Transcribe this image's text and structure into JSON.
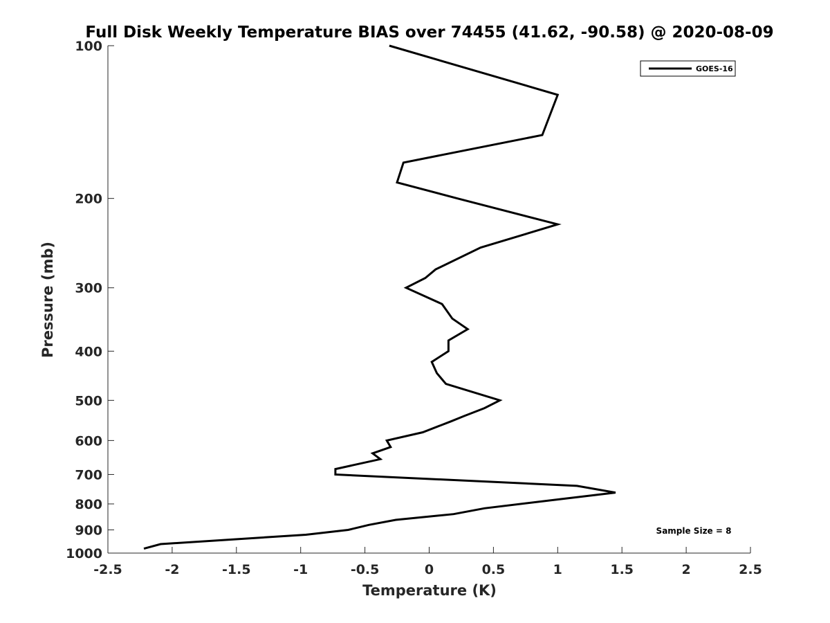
{
  "chart_data": {
    "type": "line",
    "title": "Full Disk Weekly Temperature BIAS over 74455 (41.62, -90.58) @ 2020-08-09",
    "xlabel": "Temperature (K)",
    "ylabel": "Pressure (mb)",
    "xlim": [
      -2.5,
      2.5
    ],
    "ylim": [
      100,
      1000
    ],
    "y_scale": "log",
    "y_reversed": true,
    "grid": false,
    "x_ticks": [
      -2.5,
      -2,
      -1.5,
      -1,
      -0.5,
      0,
      0.5,
      1,
      1.5,
      2,
      2.5
    ],
    "x_tick_labels": [
      "-2.5",
      "-2",
      "-1.5",
      "-1",
      "-0.5",
      "0",
      "0.5",
      "1",
      "1.5",
      "2",
      "2.5"
    ],
    "y_ticks": [
      100,
      200,
      300,
      400,
      500,
      600,
      700,
      800,
      900,
      1000
    ],
    "y_tick_labels": [
      "100",
      "200",
      "300",
      "400",
      "500",
      "600",
      "700",
      "800",
      "900",
      "1000"
    ],
    "legend_position": "top-right",
    "annotation": "Sample Size = 8",
    "series": [
      {
        "name": "GOES-16",
        "color": "#000000",
        "points": [
          [
            -0.31,
            100
          ],
          [
            1.0,
            125
          ],
          [
            0.88,
            150
          ],
          [
            -0.2,
            170
          ],
          [
            -0.25,
            186
          ],
          [
            0.22,
            200
          ],
          [
            1.0,
            225
          ],
          [
            0.4,
            250
          ],
          [
            0.05,
            276
          ],
          [
            -0.03,
            287
          ],
          [
            -0.18,
            300
          ],
          [
            0.1,
            323
          ],
          [
            0.18,
            345
          ],
          [
            0.3,
            362
          ],
          [
            0.15,
            381
          ],
          [
            0.15,
            400
          ],
          [
            0.02,
            420
          ],
          [
            0.06,
            442
          ],
          [
            0.13,
            464
          ],
          [
            0.55,
            500
          ],
          [
            0.43,
            518
          ],
          [
            0.27,
            537
          ],
          [
            0.17,
            550
          ],
          [
            -0.05,
            578
          ],
          [
            -0.33,
            600
          ],
          [
            -0.3,
            618
          ],
          [
            -0.44,
            636
          ],
          [
            -0.38,
            653
          ],
          [
            -0.73,
            683
          ],
          [
            -0.73,
            700
          ],
          [
            1.15,
            737
          ],
          [
            1.45,
            760
          ],
          [
            1.02,
            783
          ],
          [
            0.43,
            816
          ],
          [
            0.19,
            838
          ],
          [
            -0.26,
            860
          ],
          [
            -0.47,
            880
          ],
          [
            -0.63,
            900
          ],
          [
            -0.96,
            920
          ],
          [
            -2.09,
            960
          ],
          [
            -2.22,
            980
          ]
        ]
      }
    ]
  }
}
